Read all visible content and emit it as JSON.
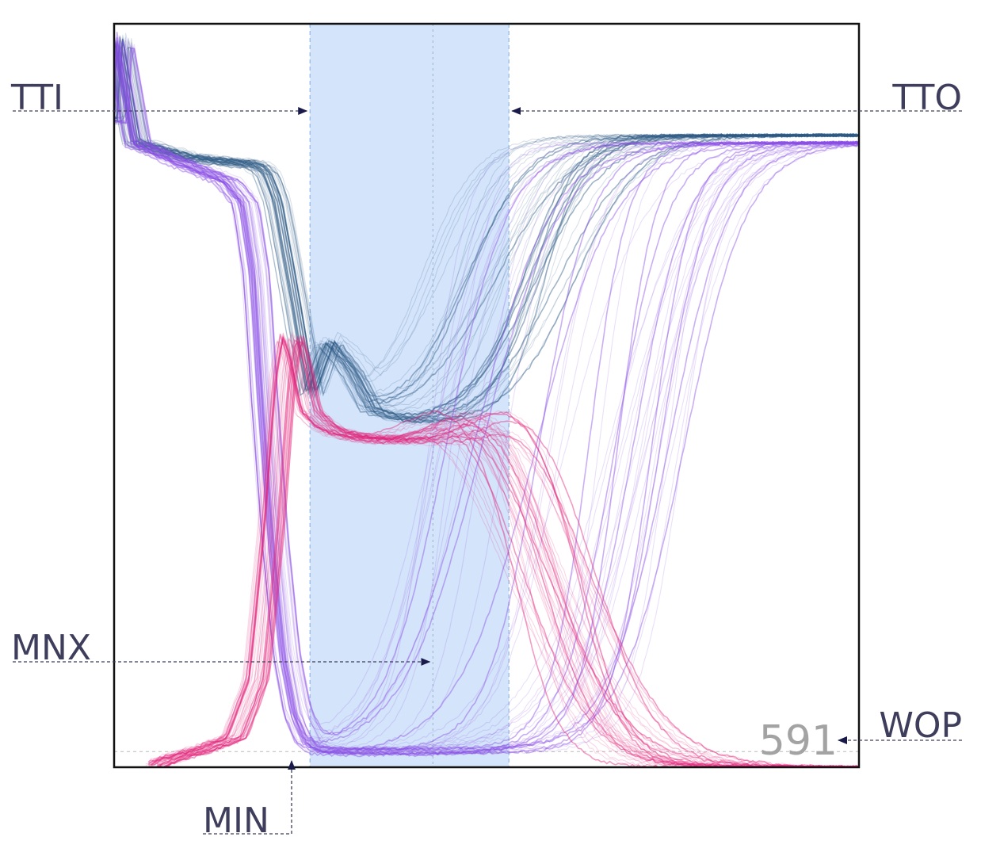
{
  "chart_data": {
    "type": "line",
    "title": "",
    "xlabel": "",
    "ylabel": "",
    "axes_ticks": "none",
    "grid": false,
    "legend": "none",
    "x_range": [
      0,
      1
    ],
    "y_range": [
      0,
      1
    ],
    "window": {
      "start": 0.263,
      "end": 0.53,
      "mid": 0.428,
      "color": "#d4e4fb",
      "edge_color": "#90b8e6"
    },
    "baseline_y": 0.021,
    "series": [
      {
        "color": "#2e5a86",
        "samples": 42,
        "points_x": [
          0.0,
          0.005,
          0.03,
          0.1,
          0.19,
          0.205,
          0.22,
          0.245,
          0.265,
          0.29,
          0.32,
          0.345,
          0.37,
          0.4,
          0.45,
          0.55,
          0.65,
          0.8,
          1.0
        ],
        "in_y": [
          0.87,
          0.985,
          0.84,
          0.82,
          0.81,
          0.8,
          0.76,
          0.62,
          0.5,
          0.57,
          0.53,
          0.48,
          0.47,
          0.463,
          0.461,
          0.462,
          0.463,
          0.464,
          0.465
        ],
        "out_start": [
          0.4,
          0.62
        ],
        "out_end_y": 0.85
      },
      {
        "color": "#8a4ee6",
        "samples": 46,
        "points_x": [
          0.0,
          0.005,
          0.03,
          0.1,
          0.15,
          0.175,
          0.19,
          0.2,
          0.215,
          0.23,
          0.245,
          0.26,
          0.28,
          0.32,
          0.4,
          0.6,
          1.0
        ],
        "in_y": [
          0.87,
          0.985,
          0.84,
          0.81,
          0.79,
          0.76,
          0.66,
          0.5,
          0.3,
          0.15,
          0.07,
          0.035,
          0.023,
          0.021,
          0.021,
          0.021,
          0.021
        ],
        "out_start": [
          0.42,
          0.78
        ],
        "out_end_y": 0.84
      },
      {
        "color": "#e3237a",
        "samples": 44,
        "points_x": [
          0.05,
          0.07,
          0.12,
          0.16,
          0.19,
          0.21,
          0.225,
          0.235,
          0.245,
          0.26,
          0.28,
          0.3,
          0.33,
          0.37,
          0.45,
          0.55,
          0.7,
          1.0
        ],
        "in_y": [
          0.001,
          0.01,
          0.025,
          0.04,
          0.12,
          0.32,
          0.52,
          0.58,
          0.55,
          0.48,
          0.46,
          0.45,
          0.444,
          0.441,
          0.44,
          0.44,
          0.44,
          0.44
        ],
        "out_peak": [
          0.47,
          0.6
        ],
        "out_peak_y": 0.48
      }
    ],
    "annotations": {
      "tti": "TTI",
      "tto": "TTO",
      "mnx": "MNX",
      "min": "MIN",
      "wop": "WOP",
      "count": "591"
    },
    "annotation_color": "#1a1a4a",
    "label_color": "#3e3e5c",
    "count_color": "#a3a3a3"
  }
}
